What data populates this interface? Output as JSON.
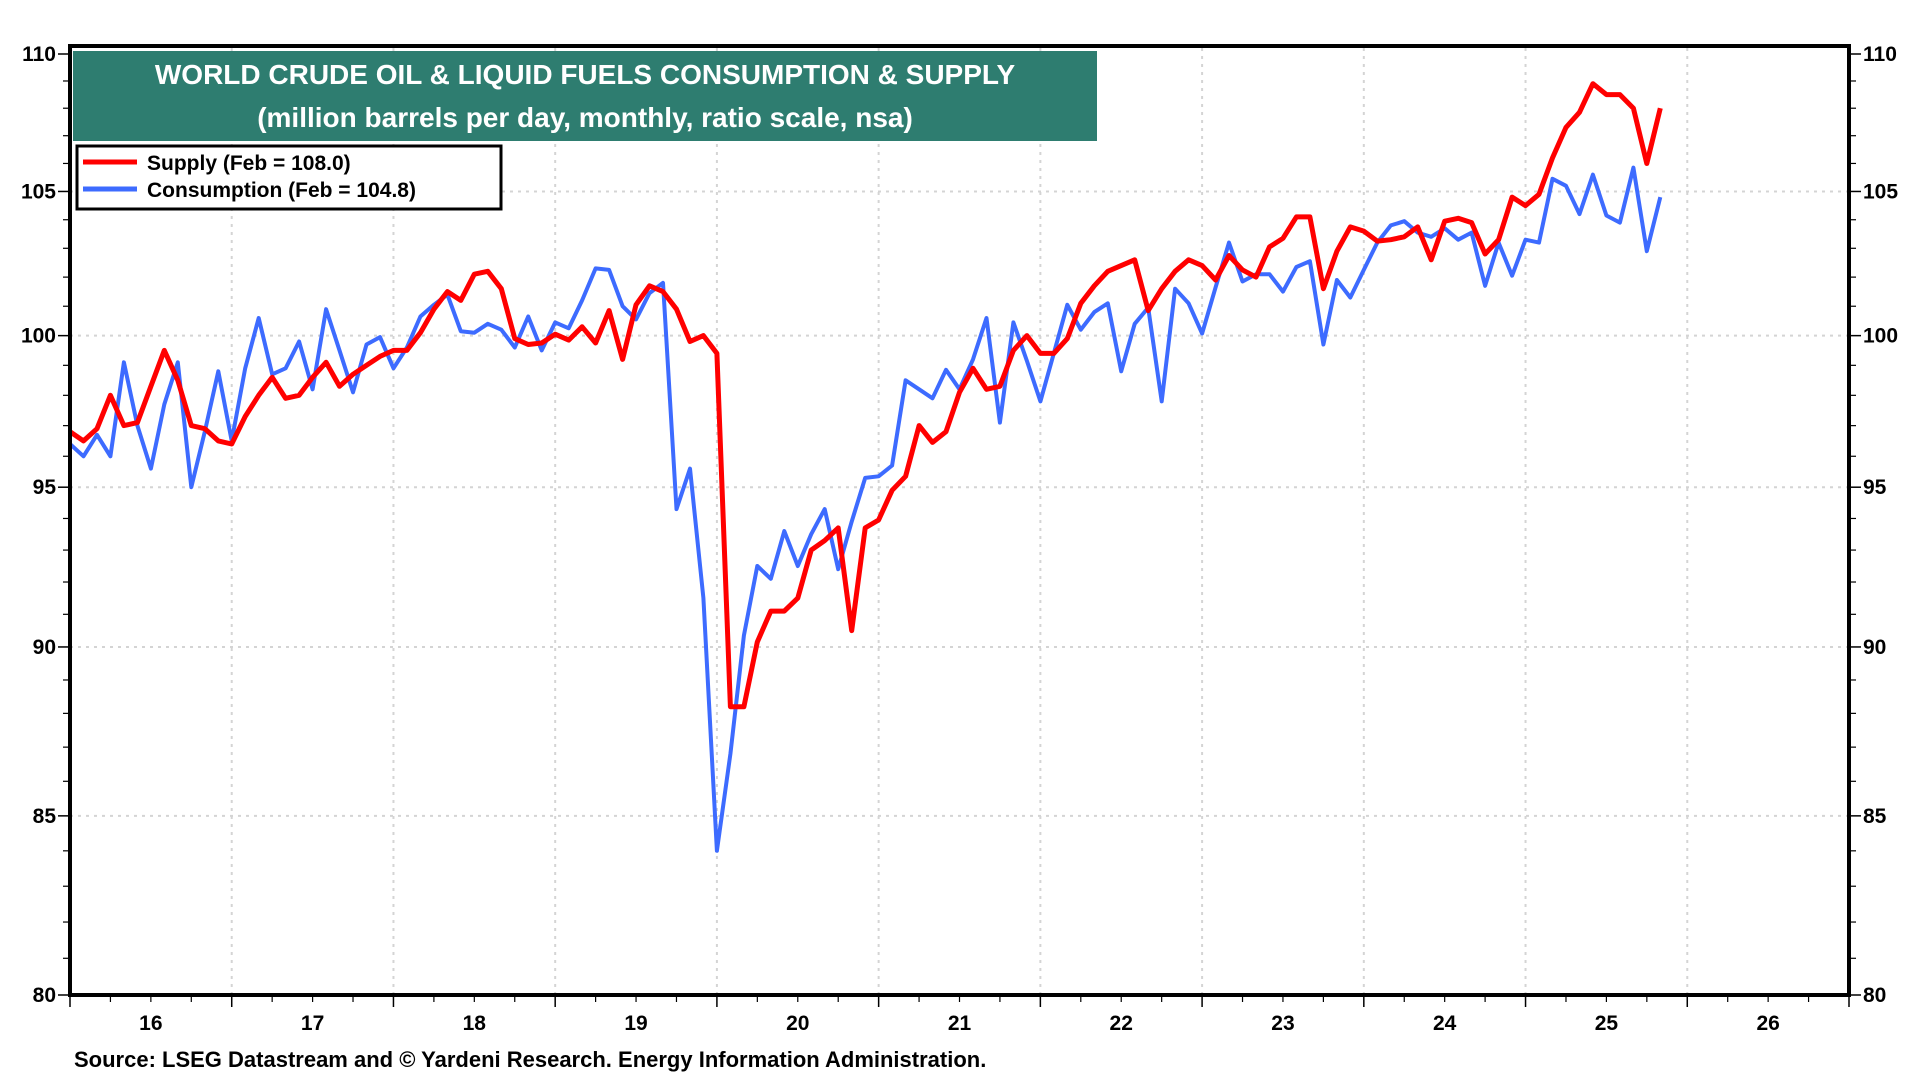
{
  "title": {
    "line1": "WORLD CRUDE OIL & LIQUID FUELS CONSUMPTION & SUPPLY",
    "line2": "(million barrels per day, monthly, ratio scale, nsa)",
    "background_color": "#2E7D70"
  },
  "legend": {
    "placement": "top-left",
    "entries": [
      {
        "label": "Supply (Feb = 108.0)",
        "color": "#FF0000"
      },
      {
        "label": "Consumption (Feb = 104.8)",
        "color": "#3D6BFF"
      }
    ]
  },
  "source": "Source: LSEG Datastream and © Yardeni Research. Energy Information Administration.",
  "chart_data": {
    "type": "line",
    "y_scale": "log",
    "ylim": [
      80,
      110
    ],
    "xlim": [
      2016,
      2027
    ],
    "grid": true,
    "y_ticks": [
      "80",
      "85",
      "90",
      "95",
      "100",
      "105",
      "110"
    ],
    "x_tick_labels": [
      "16",
      "17",
      "18",
      "19",
      "20",
      "21",
      "22",
      "23",
      "24",
      "25",
      "26"
    ],
    "x_start": "2016-01",
    "frequency": "monthly",
    "series": [
      {
        "name": "Supply",
        "color": "#FF0000",
        "values": [
          96.8,
          96.5,
          96.9,
          98.0,
          97.0,
          97.1,
          98.3,
          99.5,
          98.5,
          97.0,
          96.9,
          96.5,
          96.4,
          97.3,
          98.0,
          98.6,
          97.9,
          98.0,
          98.6,
          99.1,
          98.3,
          98.7,
          99.0,
          99.3,
          99.5,
          99.5,
          100.1,
          100.9,
          101.5,
          101.2,
          102.1,
          102.2,
          101.6,
          99.9,
          99.7,
          99.75,
          100.05,
          99.85,
          100.3,
          99.75,
          100.85,
          99.2,
          101.05,
          101.7,
          101.5,
          100.9,
          99.8,
          100.0,
          99.4,
          88.2,
          88.2,
          90.15,
          91.1,
          91.1,
          91.5,
          93.0,
          93.3,
          93.7,
          90.5,
          93.7,
          93.95,
          94.9,
          95.35,
          97.0,
          96.45,
          96.8,
          98.1,
          98.9,
          98.2,
          98.3,
          99.5,
          100.0,
          99.4,
          99.4,
          99.9,
          101.1,
          101.7,
          102.2,
          102.4,
          102.6,
          100.85,
          101.6,
          102.2,
          102.6,
          102.4,
          101.9,
          102.75,
          102.25,
          102.0,
          103.05,
          103.35,
          104.1,
          104.1,
          101.6,
          102.9,
          103.75,
          103.6,
          103.25,
          103.3,
          103.4,
          103.75,
          102.6,
          103.95,
          104.05,
          103.9,
          102.8,
          103.3,
          104.8,
          104.5,
          104.9,
          106.2,
          107.3,
          107.85,
          108.9,
          108.5,
          108.5,
          108.0,
          106.0,
          108.0
        ]
      },
      {
        "name": "Consumption",
        "color": "#3D6BFF",
        "values": [
          96.4,
          96.0,
          96.7,
          96.0,
          99.1,
          97.0,
          95.6,
          97.7,
          99.1,
          95.0,
          96.8,
          98.8,
          96.5,
          98.9,
          100.6,
          98.7,
          98.9,
          99.8,
          98.2,
          100.9,
          99.5,
          98.1,
          99.7,
          99.95,
          98.9,
          99.6,
          100.65,
          101.05,
          101.4,
          100.15,
          100.1,
          100.4,
          100.2,
          99.6,
          100.65,
          99.5,
          100.45,
          100.25,
          101.2,
          102.3,
          102.25,
          101.0,
          100.55,
          101.45,
          101.8,
          94.3,
          95.6,
          91.5,
          84.0,
          86.8,
          90.35,
          92.5,
          92.1,
          93.6,
          92.5,
          93.5,
          94.3,
          92.4,
          93.9,
          95.3,
          95.35,
          95.7,
          98.5,
          98.2,
          97.9,
          98.85,
          98.2,
          99.2,
          100.6,
          97.1,
          100.45,
          99.15,
          97.8,
          99.4,
          101.05,
          100.2,
          100.8,
          101.1,
          98.8,
          100.4,
          100.95,
          97.8,
          101.6,
          101.1,
          100.07,
          101.65,
          103.2,
          101.85,
          102.1,
          102.1,
          101.5,
          102.35,
          102.55,
          99.7,
          101.9,
          101.3,
          102.25,
          103.2,
          103.8,
          103.95,
          103.55,
          103.4,
          103.7,
          103.3,
          103.55,
          101.7,
          103.2,
          102.05,
          103.3,
          103.2,
          105.45,
          105.2,
          104.2,
          105.6,
          104.15,
          103.9,
          105.85,
          102.9,
          104.8
        ]
      }
    ]
  }
}
